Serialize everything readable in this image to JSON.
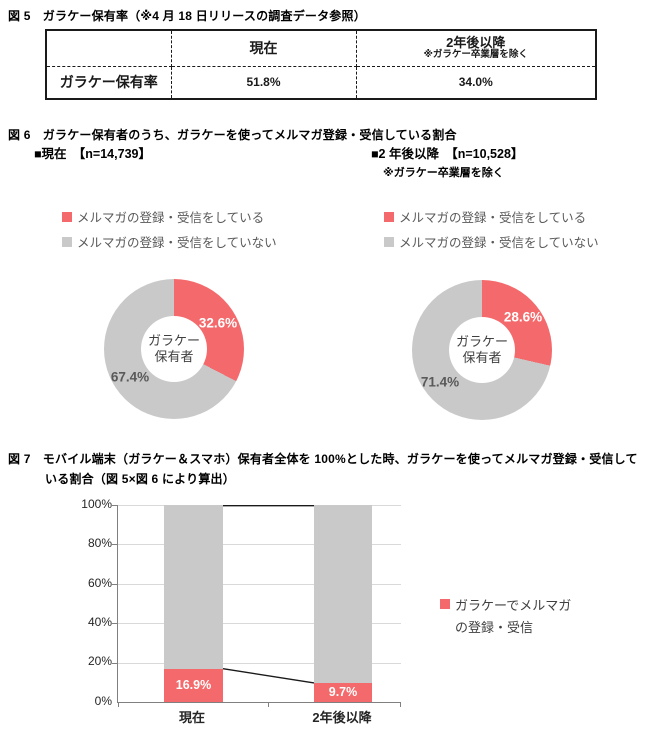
{
  "colors": {
    "accent_red": "#F4696B",
    "series_gray": "#C9C9C9",
    "legend_text": "#595959",
    "grid": "#D9D9D9",
    "axis": "#808080"
  },
  "fig5": {
    "title": "図 5　ガラケー保有率（※4 月 18 日リリースの調査データ参照）",
    "table": {
      "header_current": "現在",
      "header_future": "2年後以降",
      "header_future_note": "※ガラケー卒業層を除く",
      "row_label": "ガラケー保有率",
      "value_current": "51.8%",
      "value_future": "34.0%"
    }
  },
  "fig6": {
    "title": "図 6　ガラケー保有者のうち、ガラケーを使ってメルマガ登録・受信している割合",
    "left": {
      "header": "■現在　【n=14,739】",
      "legend_yes": "メルマガの登録・受信をしている",
      "legend_no": "メルマガの登録・受信をしていない",
      "value_yes": "32.6%",
      "value_no": "67.4%",
      "center_line1": "ガラケー",
      "center_line2": "保有者"
    },
    "right": {
      "header": "■2 年後以降　【n=10,528】",
      "note": "※ガラケー卒業層を除く",
      "legend_yes": "メルマガの登録・受信をしている",
      "legend_no": "メルマガの登録・受信をしていない",
      "value_yes": "28.6%",
      "value_no": "71.4%",
      "center_line1": "ガラケー",
      "center_line2": "保有者"
    }
  },
  "fig7": {
    "title_line1": "図 7　モバイル端末（ガラケー＆スマホ）保有者全体を 100%とした時、ガラケーを使ってメルマガ登録・受信して",
    "title_line2": "いる割合（図 5×図 6 により算出）",
    "y_ticks": [
      "100%",
      "80%",
      "60%",
      "40%",
      "20%",
      "0%"
    ],
    "x_labels": [
      "現在",
      "2年後以降"
    ],
    "bar_labels": [
      "16.9%",
      "9.7%"
    ],
    "legend_line1": "ガラケーでメルマガ",
    "legend_line2": "の登録・受信"
  },
  "chart_data": [
    {
      "type": "table",
      "title": "図5 ガラケー保有率（※4月18日リリースの調査データ参照）",
      "columns": [
        "現在",
        "2年後以降（※ガラケー卒業層を除く）"
      ],
      "rows": [
        {
          "label": "ガラケー保有率",
          "values": [
            51.8,
            34.0
          ]
        }
      ],
      "unit": "%"
    },
    {
      "type": "pie",
      "subtype": "donut",
      "title": "現在【n=14,739】",
      "labels": [
        "メルマガの登録・受信をしている",
        "メルマガの登録・受信をしていない"
      ],
      "values": [
        32.6,
        67.4
      ],
      "colors": [
        "#F4696B",
        "#C9C9C9"
      ],
      "center_label": "ガラケー保有者",
      "start_angle": "top",
      "direction": "clockwise"
    },
    {
      "type": "pie",
      "subtype": "donut",
      "title": "2年後以降【n=10,528】※ガラケー卒業層を除く",
      "labels": [
        "メルマガの登録・受信をしている",
        "メルマガの登録・受信をしていない"
      ],
      "values": [
        28.6,
        71.4
      ],
      "colors": [
        "#F4696B",
        "#C9C9C9"
      ],
      "center_label": "ガラケー保有者",
      "start_angle": "top",
      "direction": "clockwise"
    },
    {
      "type": "bar",
      "subtype": "stacked-100",
      "title": "図7 モバイル端末（ガラケー＆スマホ）保有者全体を100%とした時、ガラケーを使ってメルマガ登録・受信している割合（図5×図6 により算出）",
      "categories": [
        "現在",
        "2年後以降"
      ],
      "series": [
        {
          "name": "ガラケーでメルマガの登録・受信",
          "values": [
            16.9,
            9.7
          ],
          "color": "#F4696B"
        },
        {
          "name": "",
          "values": [
            83.1,
            90.3
          ],
          "color": "#C9C9C9"
        }
      ],
      "ylim": [
        0,
        100
      ],
      "yticks": [
        "0%",
        "20%",
        "40%",
        "60%",
        "80%",
        "100%"
      ],
      "grid": true,
      "legend_position": "right",
      "connector_lines": true
    }
  ]
}
